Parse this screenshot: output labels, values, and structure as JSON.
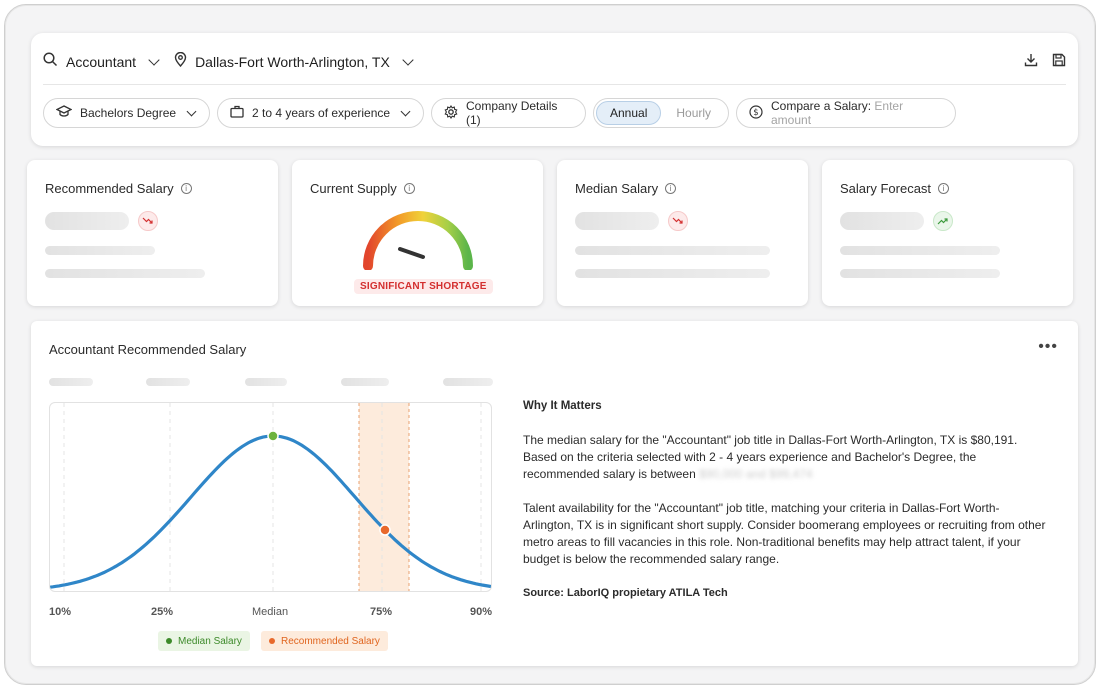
{
  "header": {
    "job_title": "Accountant",
    "location": "Dallas-Fort Worth-Arlington, TX"
  },
  "filters": {
    "education": "Bachelors Degree",
    "experience": "2 to 4 years of experience",
    "company_details": "Company Details (1)",
    "pay_period_active": "Annual",
    "pay_period_inactive": "Hourly",
    "compare_label": "Compare a Salary:",
    "compare_placeholder": "Enter amount"
  },
  "metrics": [
    {
      "title": "Recommended Salary",
      "trend": "down"
    },
    {
      "title": "Current Supply",
      "status": "SIGNIFICANT SHORTAGE"
    },
    {
      "title": "Median Salary",
      "trend": "down"
    },
    {
      "title": "Salary Forecast",
      "trend": "up"
    }
  ],
  "panel": {
    "title": "Accountant Recommended Salary",
    "why_heading": "Why It Matters",
    "para1_a": "The median salary for the \"Accountant\" job title in Dallas-Fort Worth-Arlington, TX is $80,191. Based on the criteria selected with 2 - 4 years experience and Bachelor's Degree, the recommended salary is between",
    "para1_blurred": "$90,000 and $99,474",
    "para2": "Talent availability for the \"Accountant\" job title, matching your criteria in Dallas-Fort Worth-Arlington, TX is in significant short supply. Consider boomerang employees or recruiting from other metro areas to fill vacancies in this role. Non-traditional benefits may help attract talent, if your budget is below the recommended salary range.",
    "source": "Source: LaborIQ propietary ATILA Tech"
  },
  "chart_data": {
    "type": "line",
    "x": [
      "10%",
      "25%",
      "Median",
      "75%",
      "90%"
    ],
    "series": [
      {
        "name": "Median Salary",
        "point": "Median"
      },
      {
        "name": "Recommended Salary",
        "point": "between 75% and Median"
      }
    ],
    "highlight_band": "around 75%"
  },
  "colors": {
    "curve": "#2f86c8",
    "median": "#6db33f",
    "recommended": "#e8692c",
    "band": "#fdebdc",
    "shortage": "#d32f2f"
  }
}
